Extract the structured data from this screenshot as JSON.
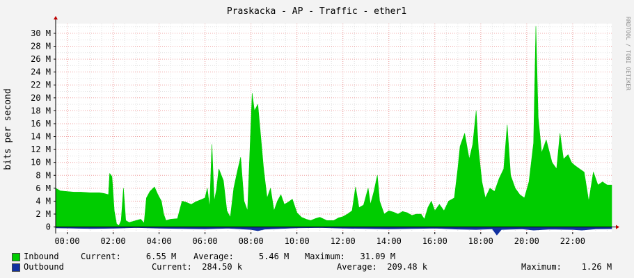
{
  "chart_data": {
    "type": "area",
    "title": "Praskacka - AP - Traffic - ether1",
    "ylabel": "bits per second",
    "watermark": "RRDTOOL / TOBI OETIKER",
    "x_tick_labels": [
      "00:00",
      "02:00",
      "04:00",
      "06:00",
      "08:00",
      "10:00",
      "12:00",
      "14:00",
      "16:00",
      "18:00",
      "20:00",
      "22:00"
    ],
    "x_tick_hours": [
      0,
      2,
      4,
      6,
      8,
      10,
      12,
      14,
      16,
      18,
      20,
      22
    ],
    "x_range_hours": [
      -0.5,
      23.7
    ],
    "y_tick_labels": [
      "0",
      "2 M",
      "4 M",
      "6 M",
      "8 M",
      "10 M",
      "12 M",
      "14 M",
      "16 M",
      "18 M",
      "20 M",
      "22 M",
      "24 M",
      "26 M",
      "28 M",
      "30 M"
    ],
    "y_tick_values": [
      0,
      2,
      4,
      6,
      8,
      10,
      12,
      14,
      16,
      18,
      20,
      22,
      24,
      26,
      28,
      30
    ],
    "y_range_mbps": [
      -0.8,
      31.5
    ],
    "grid": true,
    "colors": {
      "inbound": "#00CC00",
      "outbound": "#1030A0",
      "grid_major": "#F0A0A0",
      "grid_minor": "#E0E0E0",
      "axis": "#000000"
    },
    "series": [
      {
        "name": "Inbound",
        "color": "#00CC00",
        "points_mbps": [
          [
            -0.5,
            6.0
          ],
          [
            -0.3,
            5.6
          ],
          [
            0.0,
            5.5
          ],
          [
            0.3,
            5.4
          ],
          [
            0.6,
            5.4
          ],
          [
            1.0,
            5.3
          ],
          [
            1.4,
            5.3
          ],
          [
            1.6,
            5.2
          ],
          [
            1.8,
            5.0
          ],
          [
            1.85,
            8.3
          ],
          [
            1.95,
            7.8
          ],
          [
            2.05,
            2.5
          ],
          [
            2.15,
            0.5
          ],
          [
            2.25,
            0.2
          ],
          [
            2.35,
            1.0
          ],
          [
            2.45,
            6.0
          ],
          [
            2.55,
            1.0
          ],
          [
            2.7,
            0.7
          ],
          [
            3.0,
            1.0
          ],
          [
            3.2,
            1.2
          ],
          [
            3.35,
            0.6
          ],
          [
            3.45,
            4.5
          ],
          [
            3.6,
            5.5
          ],
          [
            3.8,
            6.2
          ],
          [
            3.95,
            5.0
          ],
          [
            4.1,
            4.0
          ],
          [
            4.2,
            2.0
          ],
          [
            4.3,
            1.0
          ],
          [
            4.5,
            1.2
          ],
          [
            4.8,
            1.3
          ],
          [
            5.0,
            4.0
          ],
          [
            5.2,
            3.8
          ],
          [
            5.4,
            3.5
          ],
          [
            5.6,
            3.9
          ],
          [
            5.8,
            4.2
          ],
          [
            6.0,
            4.5
          ],
          [
            6.1,
            6.0
          ],
          [
            6.2,
            3.0
          ],
          [
            6.3,
            12.8
          ],
          [
            6.4,
            4.0
          ],
          [
            6.5,
            5.8
          ],
          [
            6.6,
            9.0
          ],
          [
            6.8,
            7.2
          ],
          [
            6.95,
            2.5
          ],
          [
            7.1,
            1.5
          ],
          [
            7.25,
            6.0
          ],
          [
            7.4,
            8.5
          ],
          [
            7.55,
            10.8
          ],
          [
            7.7,
            4.0
          ],
          [
            7.85,
            2.5
          ],
          [
            8.05,
            20.7
          ],
          [
            8.15,
            18.0
          ],
          [
            8.3,
            19.0
          ],
          [
            8.45,
            13.0
          ],
          [
            8.55,
            9.0
          ],
          [
            8.7,
            4.5
          ],
          [
            8.85,
            6.0
          ],
          [
            9.0,
            2.5
          ],
          [
            9.15,
            4.0
          ],
          [
            9.3,
            5.0
          ],
          [
            9.45,
            3.5
          ],
          [
            9.6,
            3.8
          ],
          [
            9.8,
            4.3
          ],
          [
            10.0,
            2.2
          ],
          [
            10.2,
            1.5
          ],
          [
            10.4,
            1.2
          ],
          [
            10.6,
            1.0
          ],
          [
            10.8,
            1.3
          ],
          [
            11.0,
            1.5
          ],
          [
            11.3,
            1.0
          ],
          [
            11.6,
            1.0
          ],
          [
            11.8,
            1.4
          ],
          [
            12.0,
            1.6
          ],
          [
            12.2,
            2.0
          ],
          [
            12.4,
            2.5
          ],
          [
            12.55,
            6.2
          ],
          [
            12.7,
            3.0
          ],
          [
            12.9,
            3.4
          ],
          [
            13.1,
            6.0
          ],
          [
            13.2,
            3.5
          ],
          [
            13.35,
            5.5
          ],
          [
            13.5,
            8.0
          ],
          [
            13.6,
            4.0
          ],
          [
            13.8,
            2.0
          ],
          [
            14.0,
            2.5
          ],
          [
            14.2,
            2.3
          ],
          [
            14.4,
            2.0
          ],
          [
            14.6,
            2.4
          ],
          [
            14.8,
            2.2
          ],
          [
            15.0,
            1.8
          ],
          [
            15.2,
            2.0
          ],
          [
            15.4,
            2.0
          ],
          [
            15.55,
            1.2
          ],
          [
            15.7,
            3.0
          ],
          [
            15.85,
            4.0
          ],
          [
            16.0,
            2.5
          ],
          [
            16.2,
            3.5
          ],
          [
            16.4,
            2.5
          ],
          [
            16.6,
            4.0
          ],
          [
            16.85,
            4.5
          ],
          [
            17.0,
            9.0
          ],
          [
            17.1,
            12.5
          ],
          [
            17.3,
            14.5
          ],
          [
            17.5,
            10.5
          ],
          [
            17.65,
            12.8
          ],
          [
            17.8,
            18.0
          ],
          [
            17.9,
            12.0
          ],
          [
            18.05,
            7.0
          ],
          [
            18.2,
            4.5
          ],
          [
            18.4,
            6.0
          ],
          [
            18.6,
            5.5
          ],
          [
            18.8,
            7.5
          ],
          [
            19.0,
            9.0
          ],
          [
            19.15,
            15.8
          ],
          [
            19.3,
            8.0
          ],
          [
            19.5,
            6.0
          ],
          [
            19.7,
            5.0
          ],
          [
            19.9,
            4.5
          ],
          [
            20.1,
            7.0
          ],
          [
            20.3,
            13.0
          ],
          [
            20.4,
            31.1
          ],
          [
            20.5,
            17.0
          ],
          [
            20.65,
            11.5
          ],
          [
            20.85,
            13.5
          ],
          [
            21.1,
            10.0
          ],
          [
            21.3,
            9.0
          ],
          [
            21.45,
            14.5
          ],
          [
            21.6,
            10.5
          ],
          [
            21.8,
            11.2
          ],
          [
            21.95,
            10.0
          ],
          [
            22.1,
            9.5
          ],
          [
            22.3,
            9.0
          ],
          [
            22.5,
            8.5
          ],
          [
            22.7,
            4.0
          ],
          [
            22.9,
            8.5
          ],
          [
            23.1,
            6.5
          ],
          [
            23.3,
            7.0
          ],
          [
            23.5,
            6.5
          ],
          [
            23.7,
            6.5
          ]
        ]
      },
      {
        "name": "Outbound",
        "color": "#1030A0",
        "points_mbps": [
          [
            -0.5,
            -0.15
          ],
          [
            1.0,
            -0.25
          ],
          [
            2.1,
            -0.2
          ],
          [
            3.0,
            -0.1
          ],
          [
            4.0,
            -0.2
          ],
          [
            6.0,
            -0.3
          ],
          [
            7.0,
            -0.2
          ],
          [
            8.0,
            -0.4
          ],
          [
            8.3,
            -0.6
          ],
          [
            8.6,
            -0.35
          ],
          [
            10.0,
            -0.15
          ],
          [
            11.0,
            -0.1
          ],
          [
            12.0,
            -0.2
          ],
          [
            14.0,
            -0.3
          ],
          [
            16.0,
            -0.2
          ],
          [
            17.0,
            -0.35
          ],
          [
            17.8,
            -0.4
          ],
          [
            18.5,
            -0.3
          ],
          [
            18.7,
            -1.26
          ],
          [
            18.9,
            -0.4
          ],
          [
            19.8,
            -0.3
          ],
          [
            20.3,
            -0.5
          ],
          [
            21.0,
            -0.35
          ],
          [
            22.0,
            -0.4
          ],
          [
            22.4,
            -0.5
          ],
          [
            23.0,
            -0.3
          ],
          [
            23.7,
            -0.28
          ]
        ]
      }
    ]
  },
  "legend": {
    "inbound": {
      "label": "Inbound",
      "current": "Current:     6.55 M",
      "average": "Average:     5.46 M",
      "maximum": "Maximum:   31.09 M"
    },
    "outbound": {
      "label": "Outbound",
      "current": "Current:  284.50 k",
      "average": "Average:  209.48 k",
      "maximum": "Maximum:    1.26 M"
    }
  }
}
